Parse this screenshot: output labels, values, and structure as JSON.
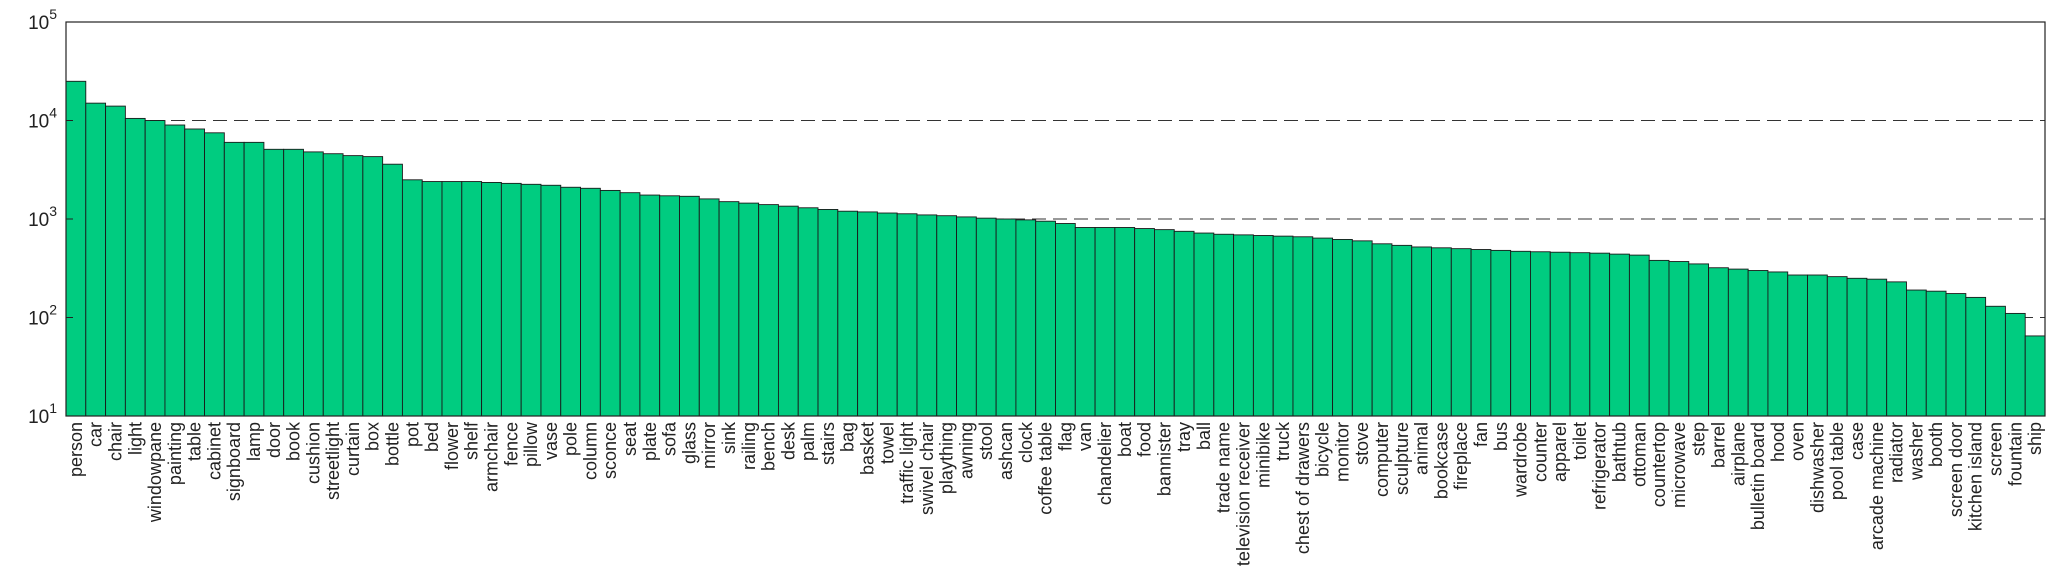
{
  "chart_data": {
    "type": "bar",
    "yscale": "log",
    "ylim": [
      10,
      100000
    ],
    "ytick_labels": [
      {
        "base": "10",
        "exp": "1",
        "value": 10
      },
      {
        "base": "10",
        "exp": "2",
        "value": 100
      },
      {
        "base": "10",
        "exp": "3",
        "value": 1000
      },
      {
        "base": "10",
        "exp": "4",
        "value": 10000
      },
      {
        "base": "10",
        "exp": "5",
        "value": 100000
      }
    ],
    "grid": "dashed horizontal at 10^2, 10^3, 10^4",
    "bar_color": "#00cc80",
    "categories": [
      "person",
      "car",
      "chair",
      "light",
      "windowpane",
      "painting",
      "table",
      "cabinet",
      "signboard",
      "lamp",
      "door",
      "book",
      "cushion",
      "streetlight",
      "curtain",
      "box",
      "bottle",
      "pot",
      "bed",
      "flower",
      "shelf",
      "armchair",
      "fence",
      "pillow",
      "vase",
      "pole",
      "column",
      "sconce",
      "seat",
      "plate",
      "sofa",
      "glass",
      "mirror",
      "sink",
      "railing",
      "bench",
      "desk",
      "palm",
      "stairs",
      "bag",
      "basket",
      "towel",
      "traffic light",
      "swivel chair",
      "plaything",
      "awning",
      "stool",
      "ashcan",
      "clock",
      "coffee table",
      "flag",
      "van",
      "chandelier",
      "boat",
      "food",
      "bannister",
      "tray",
      "ball",
      "trade name",
      "television receiver",
      "minibike",
      "truck",
      "chest of drawers",
      "bicycle",
      "monitor",
      "stove",
      "computer",
      "sculpture",
      "animal",
      "bookcase",
      "fireplace",
      "fan",
      "bus",
      "wardrobe",
      "counter",
      "apparel",
      "toilet",
      "refrigerator",
      "bathtub",
      "ottoman",
      "countertop",
      "microwave",
      "step",
      "barrel",
      "airplane",
      "bulletin board",
      "hood",
      "oven",
      "dishwasher",
      "pool table",
      "case",
      "arcade machine",
      "radiator",
      "washer",
      "booth",
      "screen door",
      "kitchen island",
      "screen",
      "fountain",
      "ship"
    ],
    "values": [
      25000,
      15000,
      14000,
      10500,
      10000,
      9000,
      8200,
      7500,
      6000,
      6000,
      5100,
      5100,
      4800,
      4600,
      4400,
      4300,
      3600,
      2500,
      2400,
      2400,
      2400,
      2350,
      2300,
      2250,
      2200,
      2100,
      2050,
      1950,
      1850,
      1750,
      1720,
      1700,
      1600,
      1500,
      1450,
      1400,
      1350,
      1300,
      1250,
      1200,
      1180,
      1150,
      1130,
      1100,
      1080,
      1050,
      1020,
      1000,
      980,
      950,
      900,
      820,
      820,
      820,
      800,
      780,
      750,
      720,
      700,
      690,
      680,
      670,
      660,
      640,
      620,
      600,
      560,
      540,
      520,
      510,
      500,
      490,
      480,
      470,
      465,
      460,
      455,
      450,
      440,
      430,
      380,
      370,
      350,
      320,
      310,
      300,
      290,
      270,
      270,
      260,
      250,
      245,
      230,
      190,
      185,
      175,
      160,
      130,
      110,
      65
    ]
  }
}
